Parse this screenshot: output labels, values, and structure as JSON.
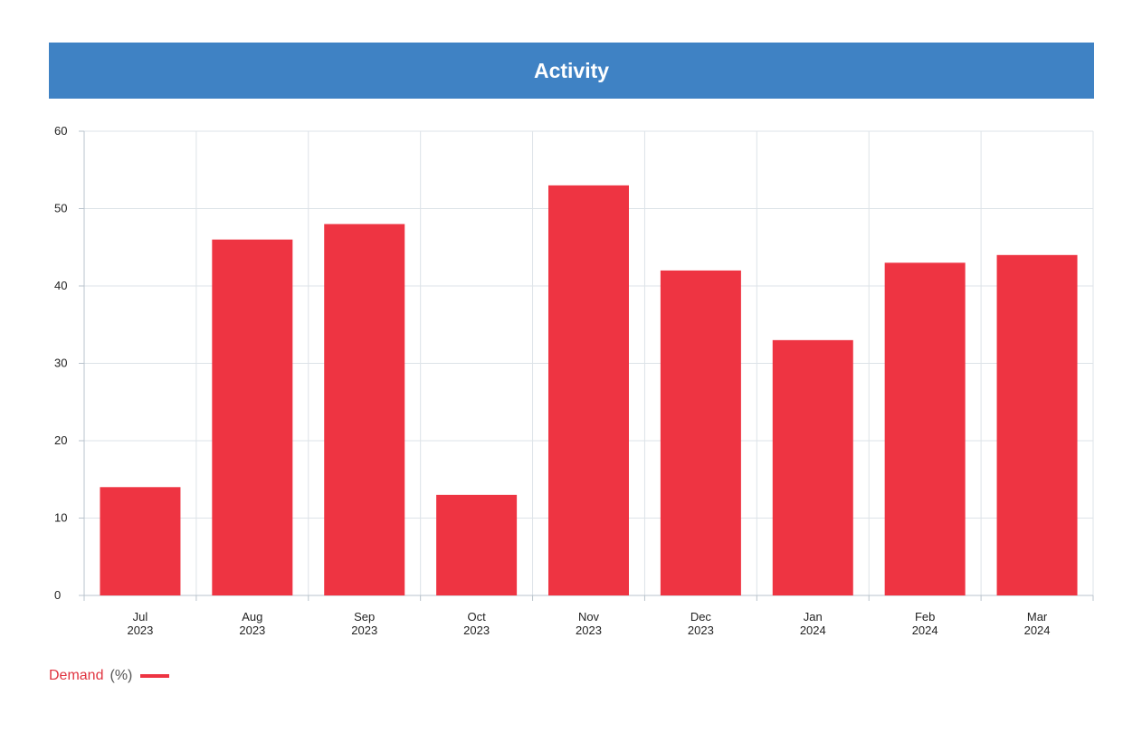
{
  "chart_data": {
    "type": "bar",
    "title": "Activity",
    "categories": [
      [
        "Jul",
        "2023"
      ],
      [
        "Aug",
        "2023"
      ],
      [
        "Sep",
        "2023"
      ],
      [
        "Oct",
        "2023"
      ],
      [
        "Nov",
        "2023"
      ],
      [
        "Dec",
        "2023"
      ],
      [
        "Jan",
        "2024"
      ],
      [
        "Feb",
        "2024"
      ],
      [
        "Mar",
        "2024"
      ]
    ],
    "series": [
      {
        "name": "Demand",
        "unit": "(%)",
        "color": "#ee3442",
        "values": [
          14,
          46,
          48,
          13,
          53,
          42,
          33,
          43,
          44
        ]
      }
    ],
    "ylim": [
      0,
      60
    ],
    "yticks": [
      "0",
      "10",
      "20",
      "30",
      "40",
      "50",
      "60"
    ],
    "grid": true,
    "legend_position": "bottom-left",
    "title_bar_color": "#3f82c4"
  }
}
